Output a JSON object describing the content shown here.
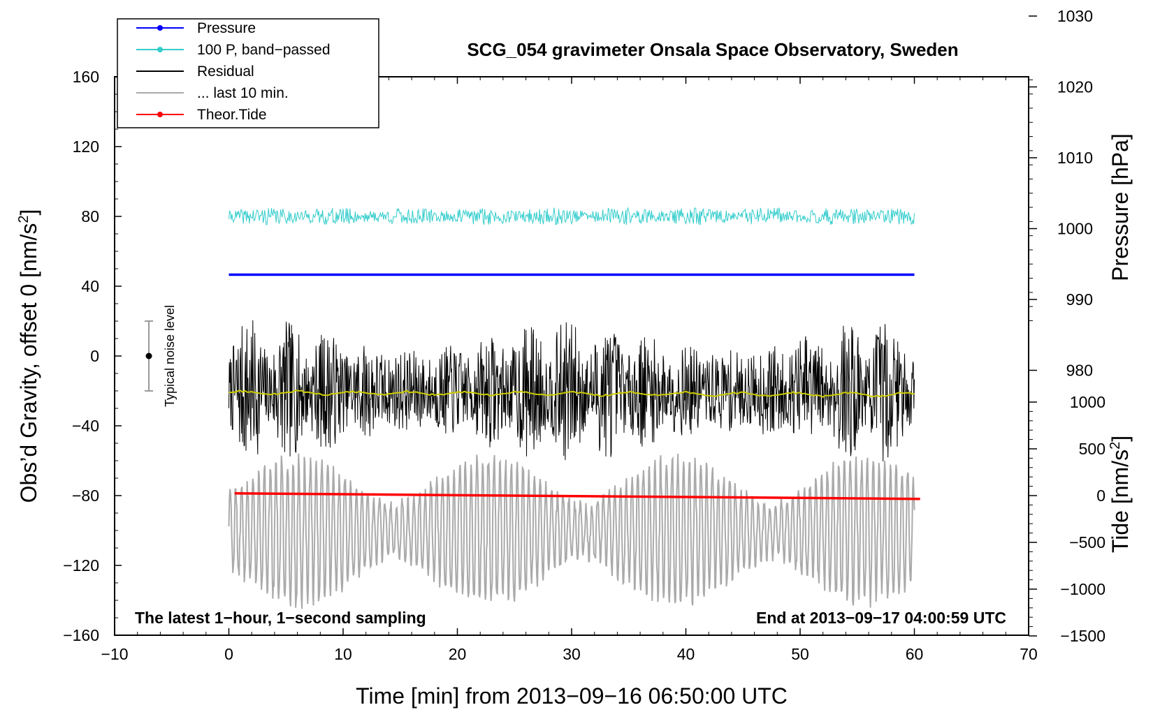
{
  "chart_data": {
    "type": "line",
    "title": "SCG_054 gravimeter Onsala Space Observatory, Sweden",
    "xlabel": "Time [min] from 2013−09−16 06:50:00 UTC",
    "ylabel_left": "Obs’d Gravity, offset 0 [nm/s",
    "ylabel_left_sup": "2",
    "ylabel_left_end": "]",
    "ylabel_pressure": "Pressure [hPa]",
    "ylabel_tide": "Tide [nm/s",
    "ylabel_tide_sup": "2",
    "ylabel_tide_end": "]",
    "xlim": [
      -10,
      70
    ],
    "ylim": [
      -160,
      160
    ],
    "x_ticks": [
      "−10",
      "0",
      "10",
      "20",
      "30",
      "40",
      "50",
      "60",
      "70"
    ],
    "y_ticks": [
      "−160",
      "−120",
      "−80",
      "−40",
      "0",
      "40",
      "80",
      "120",
      "160"
    ],
    "pressure_ticks": [
      "980",
      "990",
      "1000",
      "1010",
      "1020",
      "1030"
    ],
    "tide_ticks": [
      "−1500",
      "−1000",
      "−500",
      "0",
      "500",
      "1000"
    ],
    "pressure_axis": {
      "ref_value": 1000,
      "ref_left_value": 73,
      "scale": 4.06
    },
    "tide_axis": {
      "ref_value": 0,
      "ref_left_value": -80,
      "scale": 0.0536
    },
    "note_left": "The latest 1−hour, 1−second sampling",
    "note_right": "End at 2013−09−17 04:00:59 UTC",
    "noise_label": "Typical noise level",
    "noise_bar": {
      "x": -7,
      "center": 0,
      "low": -20,
      "high": 20
    },
    "legend": [
      {
        "label": "Pressure",
        "color": "#0000ff",
        "marker": true
      },
      {
        "label": "100 P, band−passed",
        "color": "#33cccc",
        "marker": true
      },
      {
        "label": "Residual",
        "color": "#000000",
        "marker": false
      },
      {
        "label": "... last 10 min.",
        "color": "#aaaaaa",
        "marker": false
      },
      {
        "label": "Theor.Tide",
        "color": "#ff0000",
        "marker": true
      }
    ],
    "series": [
      {
        "name": "Pressure",
        "color": "#0000ff",
        "axis": "pressure",
        "x_range": [
          0,
          60
        ],
        "approx_value_hPa": 993.5
      },
      {
        "name": "100 P, band−passed",
        "color": "#33cccc",
        "x_range": [
          0,
          60
        ],
        "approx_center": 80,
        "approx_amplitude": 5
      },
      {
        "name": "Residual",
        "color": "#000000",
        "x_range": [
          0,
          60
        ],
        "approx_center": -20,
        "approx_amplitude": 30
      },
      {
        "name": "Residual mean",
        "color": "#cccc00",
        "x_range": [
          0,
          60
        ],
        "approx_center": -21
      },
      {
        "name": "... last 10 min.",
        "color": "#aaaaaa",
        "x_range": [
          0,
          60
        ],
        "approx_center": -100,
        "approx_amplitude": 30
      },
      {
        "name": "Theor.Tide",
        "color": "#ff0000",
        "axis": "tide",
        "x_range": [
          0.5,
          60.5
        ],
        "start_value_nm_s2": 24,
        "end_value_nm_s2": -35
      }
    ]
  }
}
